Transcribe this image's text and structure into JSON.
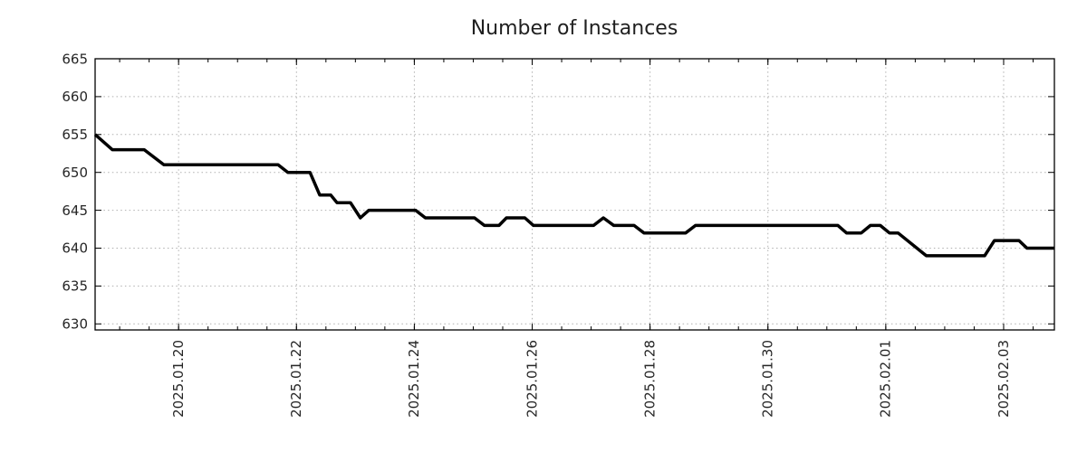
{
  "page": {
    "background": "#ffffff"
  },
  "chart_data": {
    "type": "line",
    "title": "Number of Instances",
    "xlabel": "",
    "ylabel": "",
    "legend": "none",
    "grid": true,
    "grid_color": "#b0b0b0",
    "axis_color": "#000000",
    "text_color": "#262626",
    "title_color": "#1f1f1f",
    "ylim": [
      629.2,
      665
    ],
    "xlim": [
      "2025-01-18 14:00",
      "2025-02-03 20:40"
    ],
    "yticks": [
      630,
      635,
      640,
      645,
      650,
      655,
      660,
      665
    ],
    "x_minor_tick_hours": 12,
    "xticks_major": [
      {
        "t": "2025-01-20 00:00",
        "label": "2025.01.20"
      },
      {
        "t": "2025-01-22 00:00",
        "label": "2025.01.22"
      },
      {
        "t": "2025-01-24 00:00",
        "label": "2025.01.24"
      },
      {
        "t": "2025-01-26 00:00",
        "label": "2025.01.26"
      },
      {
        "t": "2025-01-28 00:00",
        "label": "2025.01.28"
      },
      {
        "t": "2025-01-30 00:00",
        "label": "2025.01.30"
      },
      {
        "t": "2025-02-01 00:00",
        "label": "2025.02.01"
      },
      {
        "t": "2025-02-03 00:00",
        "label": "2025.02.03"
      }
    ],
    "series": [
      {
        "name": "instances",
        "color": "#000000",
        "line_width": 3.5,
        "points": [
          [
            "2025-01-18 14:00",
            655
          ],
          [
            "2025-01-18 21:00",
            653
          ],
          [
            "2025-01-19 10:00",
            653
          ],
          [
            "2025-01-19 18:00",
            651
          ],
          [
            "2025-01-21 16:30",
            651
          ],
          [
            "2025-01-21 20:30",
            650
          ],
          [
            "2025-01-22 05:30",
            650
          ],
          [
            "2025-01-22 09:30",
            647
          ],
          [
            "2025-01-22 14:00",
            647
          ],
          [
            "2025-01-22 16:30",
            646
          ],
          [
            "2025-01-22 22:00",
            646
          ],
          [
            "2025-01-23 02:00",
            644
          ],
          [
            "2025-01-23 05:30",
            645
          ],
          [
            "2025-01-24 00:30",
            645
          ],
          [
            "2025-01-24 04:30",
            644
          ],
          [
            "2025-01-25 00:30",
            644
          ],
          [
            "2025-01-25 04:30",
            643
          ],
          [
            "2025-01-25 10:30",
            643
          ],
          [
            "2025-01-25 13:30",
            644
          ],
          [
            "2025-01-25 21:00",
            644
          ],
          [
            "2025-01-26 00:30",
            643
          ],
          [
            "2025-01-27 01:00",
            643
          ],
          [
            "2025-01-27 05:00",
            644
          ],
          [
            "2025-01-27 09:15",
            643
          ],
          [
            "2025-01-27 17:30",
            643
          ],
          [
            "2025-01-27 21:30",
            642
          ],
          [
            "2025-01-28 14:30",
            642
          ],
          [
            "2025-01-28 18:30",
            643
          ],
          [
            "2025-01-31 04:30",
            643
          ],
          [
            "2025-01-31 08:00",
            642
          ],
          [
            "2025-01-31 14:00",
            642
          ],
          [
            "2025-01-31 17:45",
            643
          ],
          [
            "2025-01-31 21:45",
            643
          ],
          [
            "2025-02-01 01:30",
            642
          ],
          [
            "2025-02-01 05:00",
            642
          ],
          [
            "2025-02-01 16:30",
            639
          ],
          [
            "2025-02-02 16:15",
            639
          ],
          [
            "2025-02-02 20:15",
            641
          ],
          [
            "2025-02-03 06:15",
            641
          ],
          [
            "2025-02-03 09:30",
            640
          ],
          [
            "2025-02-03 20:40",
            640
          ]
        ]
      }
    ]
  }
}
